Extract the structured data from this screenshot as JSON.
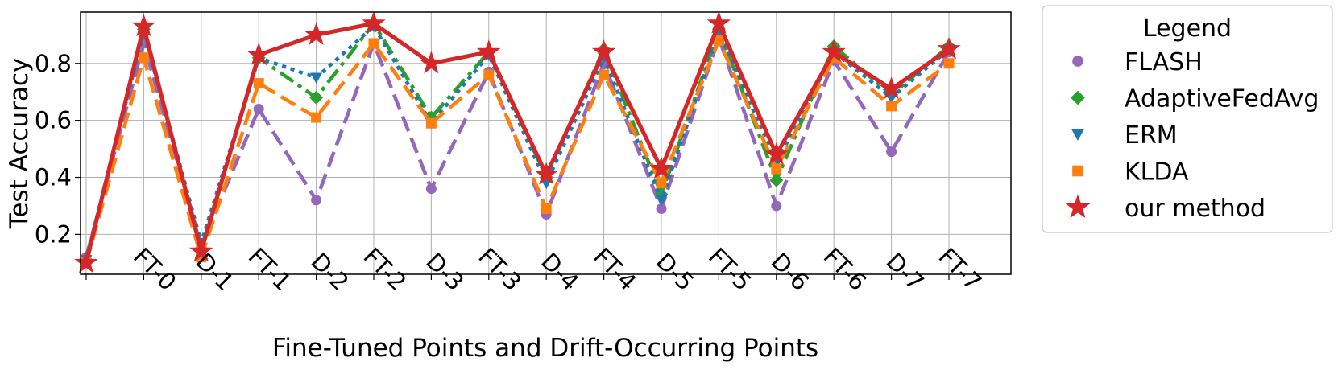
{
  "chart_data": {
    "type": "line",
    "xlabel": "Fine-Tuned Points and Drift-Occurring Points",
    "ylabel": "Test Accuracy",
    "categories": [
      "",
      "FT-0",
      "D-1",
      "FT-1",
      "D-2",
      "FT-2",
      "D-3",
      "FT-3",
      "D-4",
      "FT-4",
      "D-5",
      "FT-5",
      "D-6",
      "FT-6",
      "D-7",
      "FT-7"
    ],
    "ylim": [
      0.06,
      0.98
    ],
    "yticks": [
      "0.2",
      "0.4",
      "0.6",
      "0.8"
    ],
    "grid": true,
    "legend": {
      "title": "Legend",
      "placement": "outside-right"
    },
    "series": [
      {
        "name": "FLASH",
        "color": "#9467bd",
        "marker": "circle",
        "linestyle": "dashed",
        "values": [
          0.12,
          0.87,
          0.16,
          0.64,
          0.32,
          0.87,
          0.36,
          0.77,
          0.27,
          0.8,
          0.29,
          0.89,
          0.3,
          0.81,
          0.49,
          0.84
        ]
      },
      {
        "name": "AdaptiveFedAvg",
        "color": "#2ca02c",
        "marker": "diamond",
        "linestyle": "dashdot",
        "values": [
          0.11,
          0.92,
          0.15,
          0.82,
          0.68,
          0.94,
          0.61,
          0.84,
          0.4,
          0.85,
          0.34,
          0.92,
          0.39,
          0.86,
          0.69,
          0.86
        ]
      },
      {
        "name": "ERM",
        "color": "#1f77b4",
        "marker": "triangle-down",
        "linestyle": "dotted",
        "values": [
          0.11,
          0.91,
          0.17,
          0.82,
          0.75,
          0.93,
          0.59,
          0.83,
          0.38,
          0.82,
          0.32,
          0.91,
          0.45,
          0.84,
          0.68,
          0.85
        ]
      },
      {
        "name": "KLDA",
        "color": "#ff7f0e",
        "marker": "square",
        "linestyle": "dashed",
        "values": [
          0.1,
          0.82,
          0.12,
          0.73,
          0.61,
          0.87,
          0.59,
          0.76,
          0.29,
          0.76,
          0.38,
          0.88,
          0.43,
          0.82,
          0.65,
          0.8
        ]
      },
      {
        "name": "our method",
        "color": "#d62728",
        "marker": "star",
        "linestyle": "solid",
        "values": [
          0.1,
          0.93,
          0.14,
          0.83,
          0.9,
          0.94,
          0.8,
          0.84,
          0.41,
          0.84,
          0.43,
          0.94,
          0.48,
          0.84,
          0.71,
          0.85
        ]
      }
    ]
  }
}
